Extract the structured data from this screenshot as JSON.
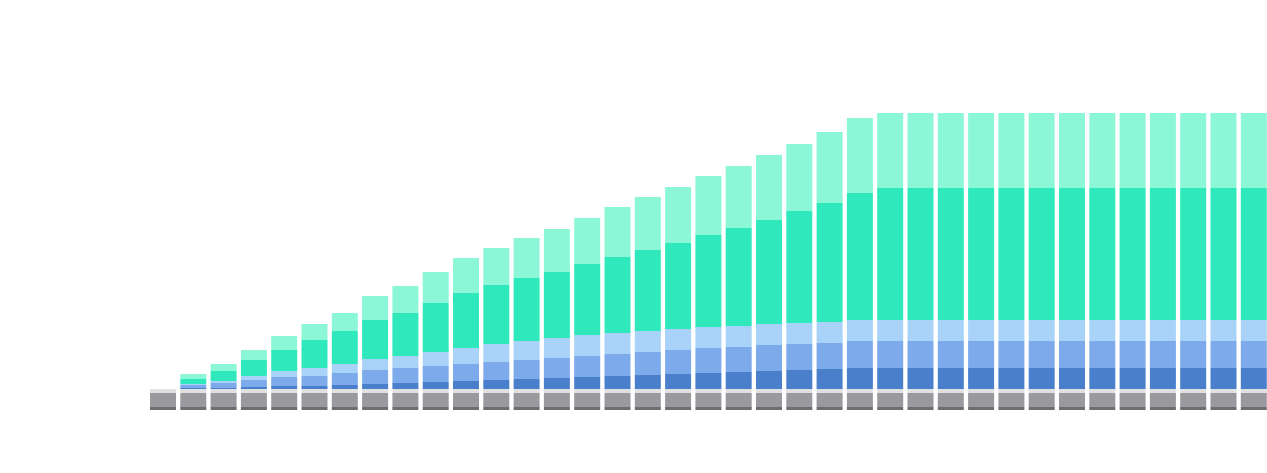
{
  "chart_data": {
    "type": "bar",
    "stacked": true,
    "title": "",
    "xlabel": "",
    "ylabel": "",
    "grid": false,
    "legend": "none",
    "category_count": 38,
    "ylim": [
      0,
      263
    ],
    "base_series": [
      {
        "key": "base-light",
        "color": "#e0e0e0",
        "values": [
          4,
          4,
          4,
          4,
          4,
          4,
          4,
          4,
          4,
          4,
          4,
          4,
          4,
          4,
          4,
          4,
          4,
          4,
          4,
          4,
          4,
          4,
          4,
          4,
          4,
          4,
          4,
          4,
          4,
          4,
          4,
          4,
          4,
          4,
          4,
          4,
          4,
          4
        ]
      },
      {
        "key": "base-mid",
        "color": "#9a9a9e",
        "values": [
          14,
          14,
          14,
          14,
          14,
          14,
          14,
          14,
          14,
          14,
          14,
          14,
          14,
          14,
          14,
          14,
          14,
          14,
          14,
          14,
          14,
          14,
          14,
          14,
          14,
          14,
          14,
          14,
          14,
          14,
          14,
          14,
          14,
          14,
          14,
          14,
          14,
          14
        ]
      },
      {
        "key": "base-dark",
        "color": "#6e6e72",
        "values": [
          3,
          3,
          3,
          3,
          3,
          3,
          3,
          3,
          3,
          3,
          3,
          3,
          3,
          3,
          3,
          3,
          3,
          3,
          3,
          3,
          3,
          3,
          3,
          3,
          3,
          3,
          3,
          3,
          3,
          3,
          3,
          3,
          3,
          3,
          3,
          3,
          3,
          3
        ]
      }
    ],
    "series": [
      {
        "color": "#4a7fcc",
        "values": [
          0,
          1,
          1,
          2,
          3,
          3,
          4,
          5,
          6,
          7,
          8,
          9,
          10,
          11,
          12,
          13,
          14,
          15,
          16,
          17,
          18,
          19,
          20,
          21,
          21,
          21,
          21,
          21,
          21,
          21,
          21,
          21,
          21,
          21,
          21,
          21,
          21,
          21
        ]
      },
      {
        "color": "#7daaeb",
        "values": [
          0,
          3,
          5,
          7,
          9,
          10,
          12,
          14,
          15,
          16,
          17,
          18,
          19,
          20,
          21,
          22,
          23,
          24,
          25,
          25,
          26,
          26,
          26,
          27,
          27,
          27,
          27,
          27,
          27,
          27,
          27,
          27,
          27,
          27,
          27,
          27,
          27,
          27
        ]
      },
      {
        "color": "#a8d2f7",
        "values": [
          0,
          1,
          2,
          4,
          6,
          8,
          9,
          11,
          12,
          14,
          16,
          18,
          19,
          20,
          21,
          21,
          21,
          21,
          21,
          21,
          21,
          21,
          21,
          21,
          21,
          21,
          21,
          21,
          21,
          21,
          21,
          21,
          21,
          21,
          21,
          21,
          21,
          21
        ]
      },
      {
        "color": "#2fe9bc",
        "values": [
          0,
          5,
          10,
          16,
          21,
          28,
          33,
          39,
          43,
          49,
          55,
          59,
          63,
          66,
          71,
          76,
          81,
          86,
          92,
          98,
          104,
          112,
          119,
          127,
          132,
          132,
          132,
          132,
          132,
          132,
          132,
          132,
          132,
          132,
          132,
          132,
          132,
          132
        ]
      },
      {
        "color": "#8cf7d6",
        "values": [
          0,
          5,
          7,
          10,
          14,
          16,
          18,
          24,
          27,
          31,
          35,
          37,
          40,
          43,
          46,
          50,
          53,
          56,
          59,
          62,
          65,
          67,
          71,
          75,
          75,
          75,
          75,
          75,
          75,
          75,
          75,
          75,
          75,
          75,
          75,
          75,
          75,
          75
        ]
      }
    ]
  }
}
